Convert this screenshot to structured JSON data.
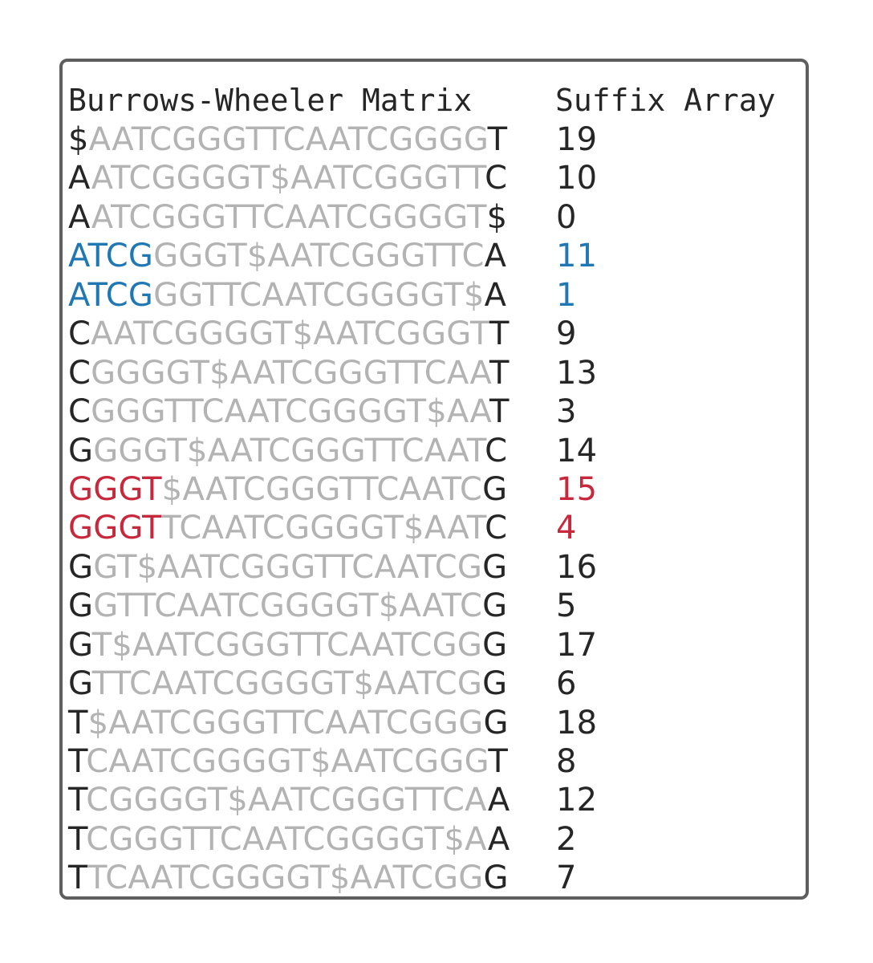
{
  "headings": {
    "bwm": "Burrows-Wheeler Matrix",
    "sa": "Suffix Array"
  },
  "colors": {
    "first_last": "#262626",
    "middle": "#b3b3b3",
    "highlight_blue": "#1f77b4",
    "highlight_red": "#c8283c",
    "frame": "#5f5f5f"
  },
  "rows": [
    {
      "hl": "",
      "first": "$",
      "mid": "AATCGGGTTCAATCGGGG",
      "last": "T",
      "sa": "19",
      "color": ""
    },
    {
      "hl": "",
      "first": "A",
      "mid": "ATCGGGGT$AATCGGGTT",
      "last": "C",
      "sa": "10",
      "color": ""
    },
    {
      "hl": "",
      "first": "A",
      "mid": "ATCGGGTTCAATCGGGGT",
      "last": "$",
      "sa": "0",
      "color": ""
    },
    {
      "hl": "ATCG",
      "first": "",
      "mid": "GGGT$AATCGGGTTC",
      "last": "A",
      "sa": "11",
      "color": "blue"
    },
    {
      "hl": "ATCG",
      "first": "",
      "mid": "GGTTCAATCGGGGT$",
      "last": "A",
      "sa": "1",
      "color": "blue"
    },
    {
      "hl": "",
      "first": "C",
      "mid": "AATCGGGGT$AATCGGGT",
      "last": "T",
      "sa": "9",
      "color": ""
    },
    {
      "hl": "",
      "first": "C",
      "mid": "GGGGT$AATCGGGTTCAA",
      "last": "T",
      "sa": "13",
      "color": ""
    },
    {
      "hl": "",
      "first": "C",
      "mid": "GGGTTCAATCGGGGT$AA",
      "last": "T",
      "sa": "3",
      "color": ""
    },
    {
      "hl": "",
      "first": "G",
      "mid": "GGGT$AATCGGGTTCAAT",
      "last": "C",
      "sa": "14",
      "color": ""
    },
    {
      "hl": "GGGT",
      "first": "",
      "mid": "$AATCGGGTTCAATC",
      "last": "G",
      "sa": "15",
      "color": "red"
    },
    {
      "hl": "GGGT",
      "first": "",
      "mid": "TCAATCGGGGT$AAT",
      "last": "C",
      "sa": "4",
      "color": "red"
    },
    {
      "hl": "",
      "first": "G",
      "mid": "GT$AATCGGGTTCAATCG",
      "last": "G",
      "sa": "16",
      "color": ""
    },
    {
      "hl": "",
      "first": "G",
      "mid": "GTTCAATCGGGGT$AATC",
      "last": "G",
      "sa": "5",
      "color": ""
    },
    {
      "hl": "",
      "first": "G",
      "mid": "T$AATCGGGTTCAATCGG",
      "last": "G",
      "sa": "17",
      "color": ""
    },
    {
      "hl": "",
      "first": "G",
      "mid": "TTCAATCGGGGT$AATCG",
      "last": "G",
      "sa": "6",
      "color": ""
    },
    {
      "hl": "",
      "first": "T",
      "mid": "$AATCGGGTTCAATCGGG",
      "last": "G",
      "sa": "18",
      "color": ""
    },
    {
      "hl": "",
      "first": "T",
      "mid": "CAATCGGGGT$AATCGGG",
      "last": "T",
      "sa": "8",
      "color": ""
    },
    {
      "hl": "",
      "first": "T",
      "mid": "CGGGGT$AATCGGGTTCA",
      "last": "A",
      "sa": "12",
      "color": ""
    },
    {
      "hl": "",
      "first": "T",
      "mid": "CGGGTTCAATCGGGGT$A",
      "last": "A",
      "sa": "2",
      "color": ""
    },
    {
      "hl": "",
      "first": "T",
      "mid": "TCAATCGGGGT$AATCGG",
      "last": "G",
      "sa": "7",
      "color": ""
    }
  ]
}
